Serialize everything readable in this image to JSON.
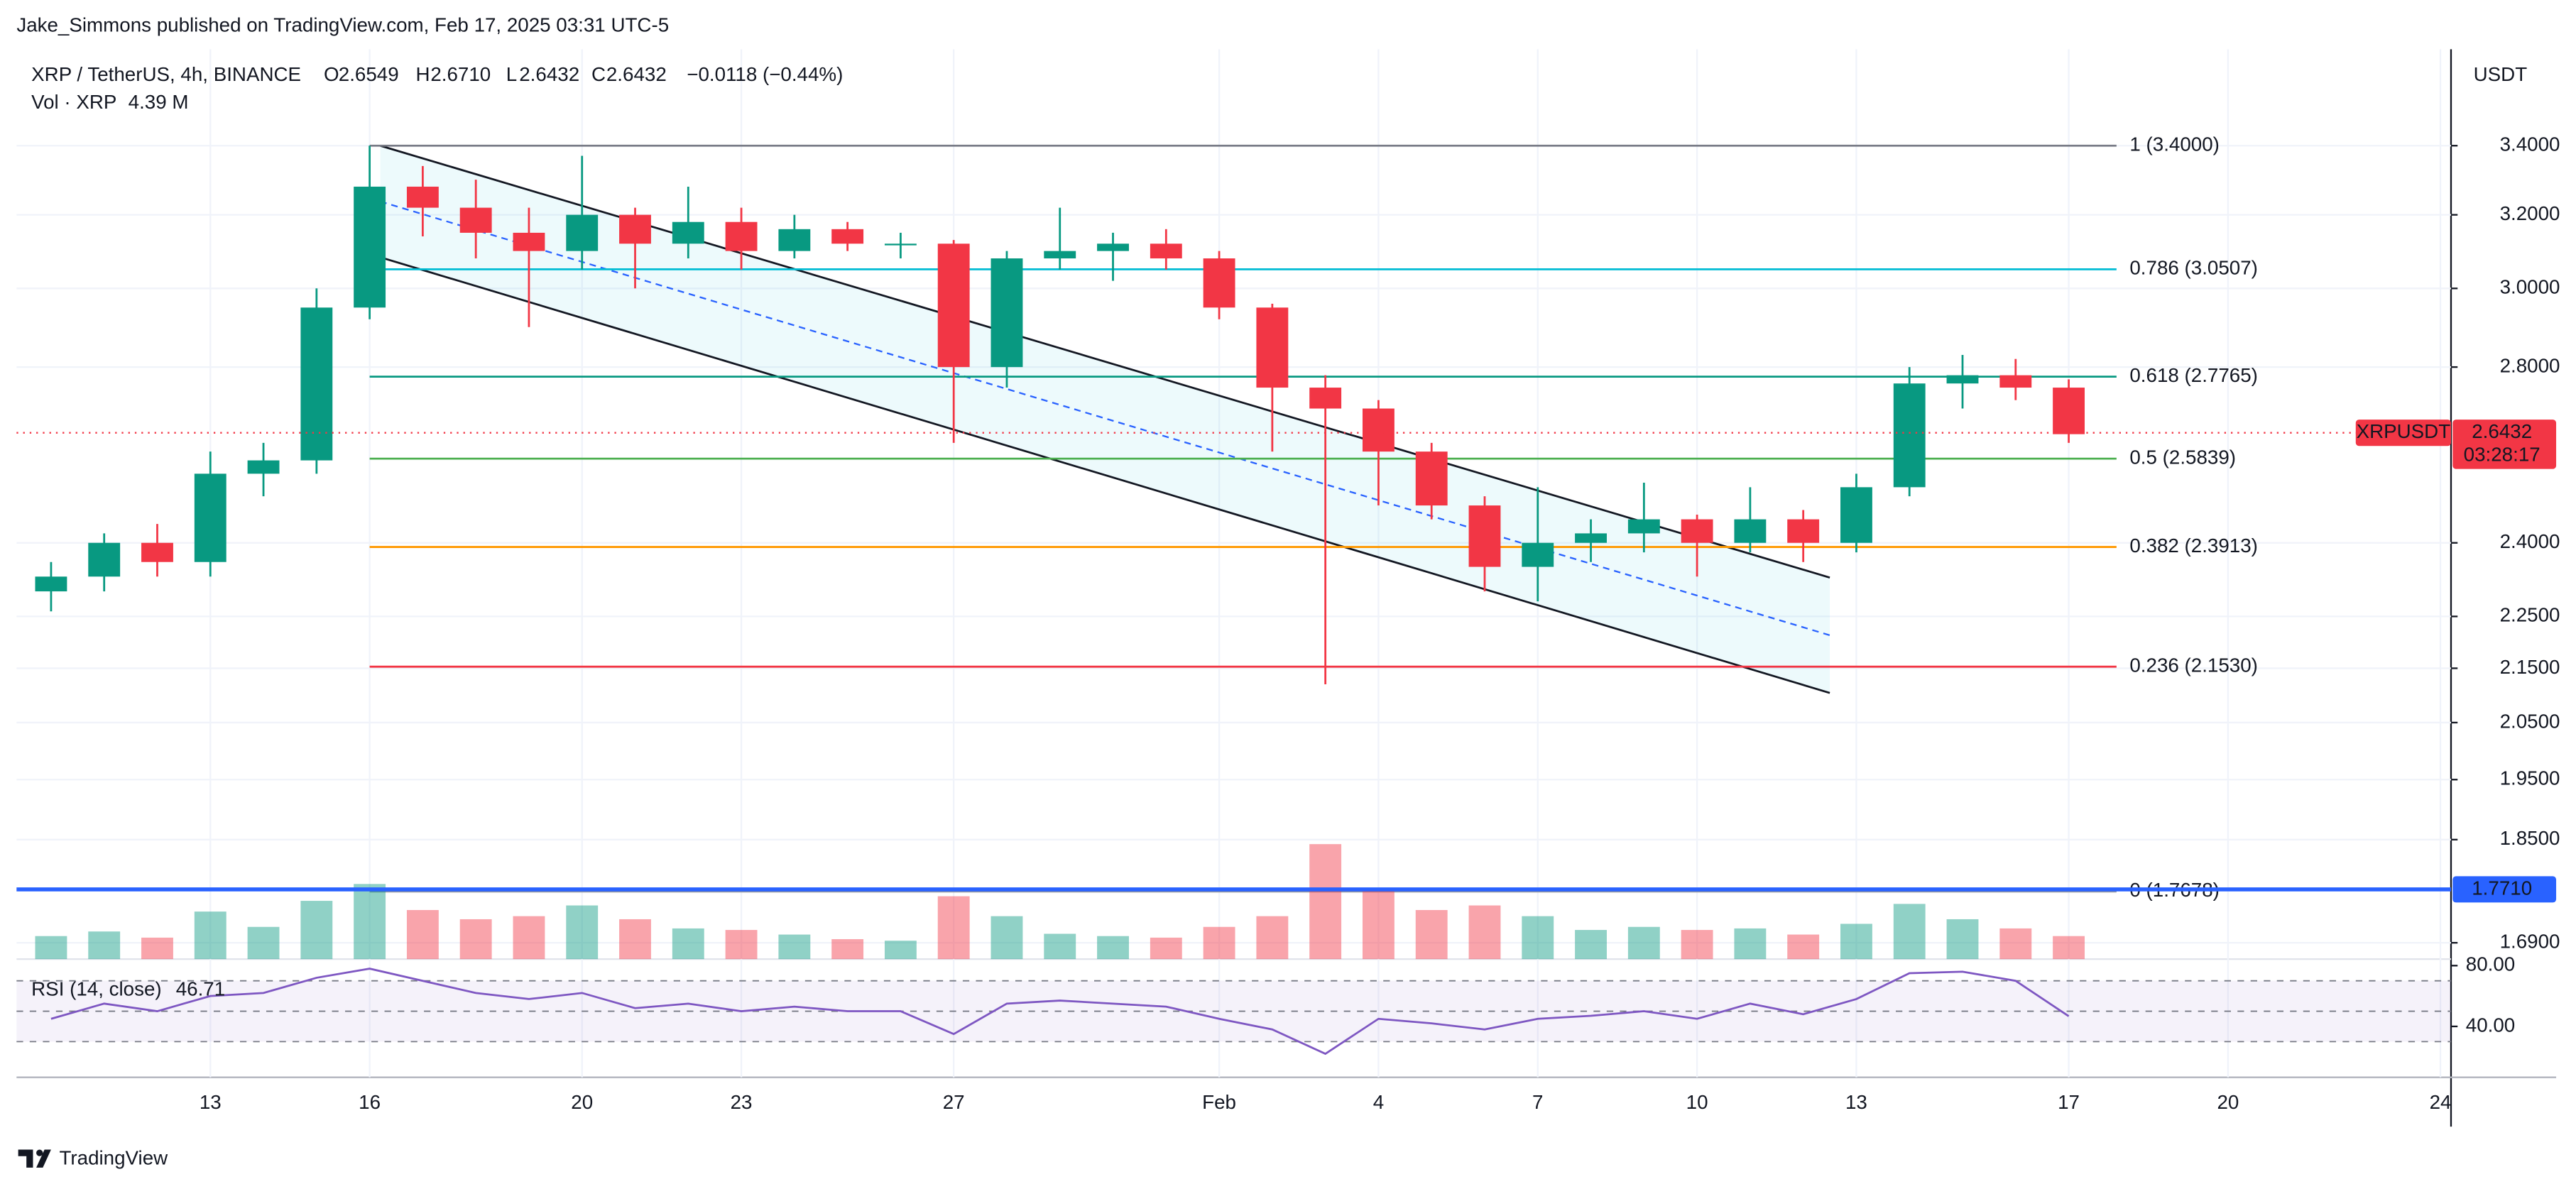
{
  "header": "Jake_Simmons published on TradingView.com, Feb 17, 2025 03:31 UTC-5",
  "footer": "TradingView",
  "chart_data": {
    "type": "candlestick",
    "symbol": "XRP / TetherUS, 4h, BINANCE",
    "ohlc_letters": [
      "O",
      "H",
      "L",
      "C"
    ],
    "ohlc_values": [
      "2.6549",
      "2.6710",
      "2.6432",
      "2.6432"
    ],
    "change": "−0.0118 (−0.44%)",
    "volume_title": "Vol · XRP",
    "volume_last": "4.39 M",
    "currency": "USDT",
    "up_color": "#089981",
    "down_color": "#f23645",
    "x": [
      10,
      11,
      12,
      13,
      14,
      15,
      16,
      17,
      18,
      19,
      20,
      21,
      22,
      23,
      24,
      25,
      26,
      27,
      28,
      29,
      30,
      31,
      32,
      33,
      34,
      35,
      36,
      37,
      38,
      39,
      40,
      41,
      42,
      43,
      44,
      45,
      46,
      47,
      48
    ],
    "open": [
      2.3,
      2.33,
      2.4,
      2.36,
      2.55,
      2.58,
      2.95,
      3.28,
      3.22,
      3.15,
      3.1,
      3.2,
      3.12,
      3.18,
      3.1,
      3.16,
      3.12,
      3.12,
      2.8,
      3.08,
      3.1,
      3.12,
      3.08,
      2.95,
      2.75,
      2.7,
      2.6,
      2.48,
      2.35,
      2.4,
      2.42,
      2.45,
      2.4,
      2.45,
      2.4,
      2.52,
      2.76,
      2.78,
      2.75
    ],
    "high": [
      2.36,
      2.42,
      2.44,
      2.6,
      2.62,
      3.0,
      3.4,
      3.34,
      3.3,
      3.22,
      3.37,
      3.22,
      3.28,
      3.22,
      3.2,
      3.18,
      3.15,
      3.13,
      3.1,
      3.22,
      3.15,
      3.16,
      3.1,
      2.96,
      2.78,
      2.72,
      2.62,
      2.5,
      2.52,
      2.45,
      2.53,
      2.46,
      2.52,
      2.47,
      2.55,
      2.8,
      2.83,
      2.82,
      2.77
    ],
    "low": [
      2.26,
      2.3,
      2.33,
      2.33,
      2.5,
      2.55,
      2.92,
      3.14,
      3.08,
      2.9,
      3.05,
      3.0,
      3.08,
      3.05,
      3.08,
      3.1,
      3.08,
      2.62,
      2.75,
      3.05,
      3.02,
      3.05,
      2.92,
      2.6,
      2.12,
      2.48,
      2.45,
      2.3,
      2.28,
      2.36,
      2.38,
      2.33,
      2.38,
      2.36,
      2.38,
      2.5,
      2.7,
      2.72,
      2.62
    ],
    "close": [
      2.33,
      2.4,
      2.36,
      2.55,
      2.58,
      2.95,
      3.28,
      3.22,
      3.15,
      3.1,
      3.2,
      3.12,
      3.18,
      3.1,
      3.16,
      3.12,
      3.12,
      2.8,
      3.08,
      3.1,
      3.12,
      3.08,
      2.95,
      2.75,
      2.7,
      2.6,
      2.48,
      2.35,
      2.4,
      2.42,
      2.45,
      2.4,
      2.45,
      2.4,
      2.52,
      2.76,
      2.78,
      2.75,
      2.64
    ],
    "volume": [
      300,
      360,
      280,
      620,
      420,
      760,
      980,
      640,
      520,
      560,
      700,
      520,
      400,
      380,
      320,
      260,
      240,
      820,
      560,
      330,
      300,
      280,
      420,
      560,
      1500,
      900,
      640,
      700,
      560,
      380,
      420,
      380,
      400,
      320,
      460,
      720,
      520,
      400,
      300
    ],
    "xlim": [
      9.35,
      55.2
    ],
    "xticks": [
      13,
      16,
      20,
      23,
      27,
      {
        "value": 32,
        "label": "Feb"
      },
      {
        "value": 35,
        "label": "4"
      },
      {
        "value": 38,
        "label": "7"
      },
      {
        "value": 41,
        "label": "10"
      },
      {
        "value": 44,
        "label": "13"
      },
      {
        "value": 48,
        "label": "17"
      },
      {
        "value": 51,
        "label": "20"
      },
      {
        "value": 55,
        "label": "24"
      }
    ],
    "ylim": [
      1.666,
      3.7
    ],
    "log_scale": true,
    "grid": true,
    "yticks": [
      {
        "value": 3.4,
        "label": "3.4000"
      },
      {
        "value": 3.2,
        "label": "3.2000"
      },
      {
        "value": 3.0,
        "label": "3.0000"
      },
      {
        "value": 2.8,
        "label": "2.8000"
      },
      {
        "value": 2.4,
        "label": "2.4000"
      },
      {
        "value": 2.25,
        "label": "2.2500"
      },
      {
        "value": 2.15,
        "label": "2.1500"
      },
      {
        "value": 2.05,
        "label": "2.0500"
      },
      {
        "value": 1.95,
        "label": "1.9500"
      },
      {
        "value": 1.85,
        "label": "1.8500"
      },
      {
        "value": 1.69,
        "label": "1.6900"
      }
    ],
    "fib_x": [
      16,
      48.9
    ],
    "fib": [
      {
        "label": "1 (3.4000)",
        "value": 3.4,
        "color": "#787b86"
      },
      {
        "label": "0.786 (3.0507)",
        "value": 3.0507,
        "color": "#00bcd4"
      },
      {
        "label": "0.618 (2.7765)",
        "value": 2.7765,
        "color": "#089981"
      },
      {
        "label": "0.5 (2.5839)",
        "value": 2.5839,
        "color": "#4caf50"
      },
      {
        "label": "0.382 (2.3913)",
        "value": 2.3913,
        "color": "#ff9800"
      },
      {
        "label": "0.236 (2.1530)",
        "value": 2.153,
        "color": "#f23645"
      },
      {
        "label": "0 (1.7678)",
        "value": 1.7678,
        "color": "#9598a1"
      }
    ],
    "hline": {
      "value": 1.771,
      "label": "1.7710",
      "color": "#2962ff"
    },
    "last_price": {
      "value": 2.6432,
      "label": "2.6432",
      "name": "XRPUSDT",
      "countdown": "03:28:17",
      "color": "#f23645"
    },
    "channel": {
      "x": [
        16.2,
        43.5
      ],
      "upper": [
        3.4,
        2.328
      ],
      "lower": [
        3.083,
        2.104
      ],
      "color": "#131722",
      "fill": "#00bcd4"
    },
    "rsi": {
      "title": "RSI (14, close)",
      "color": "#7e57c2",
      "values": [
        45,
        55,
        50,
        60,
        62,
        72,
        78,
        70,
        62,
        58,
        62,
        52,
        55,
        50,
        53,
        50,
        50,
        35,
        55,
        57,
        55,
        53,
        45,
        38,
        22,
        45,
        42,
        38,
        45,
        47,
        50,
        45,
        55,
        48,
        58,
        75,
        76,
        70,
        46.71
      ],
      "ylim": [
        6.5,
        84.3
      ],
      "yticks": [
        {
          "value": 80,
          "label": "80.00"
        },
        {
          "value": 40,
          "label": "40.00"
        }
      ],
      "bands": [
        70,
        50,
        30
      ]
    }
  }
}
